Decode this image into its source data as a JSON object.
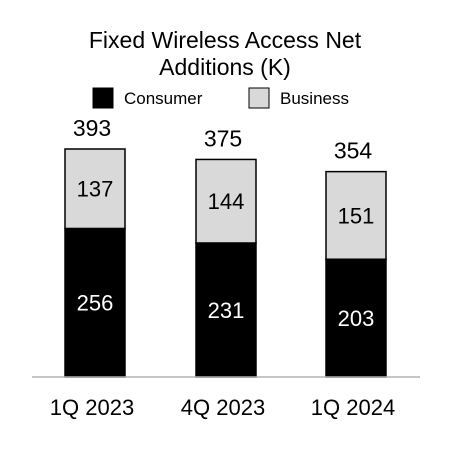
{
  "chart_data": {
    "type": "bar",
    "stacked": true,
    "title_lines": [
      "Fixed Wireless Access Net",
      "Additions (K)"
    ],
    "categories": [
      "1Q 2023",
      "4Q 2023",
      "1Q 2024"
    ],
    "series": [
      {
        "name": "Consumer",
        "values": [
          256,
          231,
          203
        ],
        "color": "#000000"
      },
      {
        "name": "Business",
        "values": [
          137,
          144,
          151
        ],
        "color": "#d9d9d9"
      }
    ],
    "totals": [
      393,
      375,
      354
    ],
    "legend_position": "top",
    "grid": false,
    "ylim": [
      0,
      393
    ]
  }
}
